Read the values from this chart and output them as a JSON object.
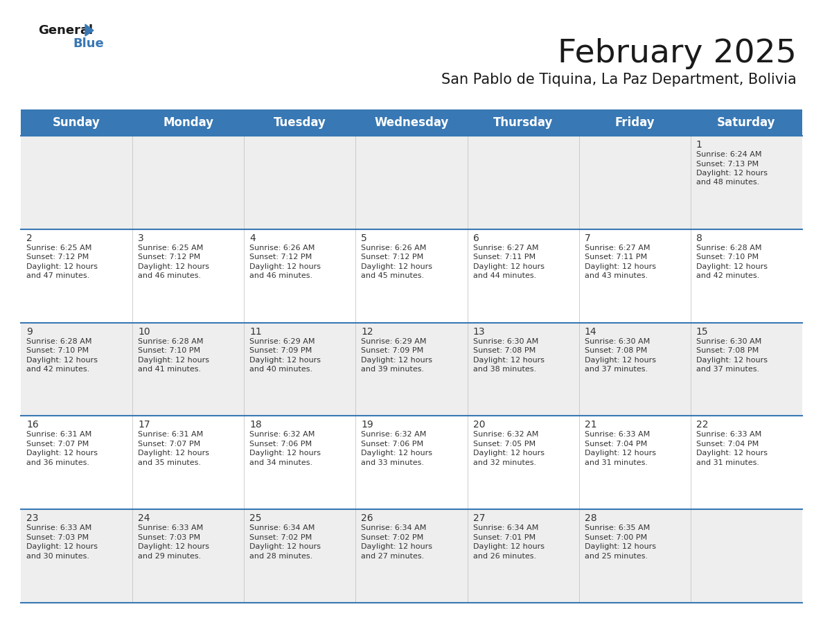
{
  "title": "February 2025",
  "subtitle": "San Pablo de Tiquina, La Paz Department, Bolivia",
  "header_color": "#3878b4",
  "header_text_color": "#ffffff",
  "day_names": [
    "Sunday",
    "Monday",
    "Tuesday",
    "Wednesday",
    "Thursday",
    "Friday",
    "Saturday"
  ],
  "bg_color": "#ffffff",
  "cell_bg_row0": "#eeeeee",
  "cell_bg_odd": "#eeeeee",
  "cell_bg_even": "#ffffff",
  "row_divider_color": "#3878b4",
  "title_fontsize": 34,
  "subtitle_fontsize": 15,
  "header_fontsize": 12,
  "day_num_fontsize": 10,
  "cell_fontsize": 8,
  "text_color": "#333333",
  "day_num_color": "#333333",
  "logo_general_color": "#1a1a1a",
  "logo_blue_color": "#3878b4",
  "logo_triangle_color": "#3878b4",
  "days": [
    {
      "date": 1,
      "col": 6,
      "row": 0,
      "sunrise": "6:24 AM",
      "sunset": "7:13 PM",
      "daylight_hours": 12,
      "daylight_minutes": 48
    },
    {
      "date": 2,
      "col": 0,
      "row": 1,
      "sunrise": "6:25 AM",
      "sunset": "7:12 PM",
      "daylight_hours": 12,
      "daylight_minutes": 47
    },
    {
      "date": 3,
      "col": 1,
      "row": 1,
      "sunrise": "6:25 AM",
      "sunset": "7:12 PM",
      "daylight_hours": 12,
      "daylight_minutes": 46
    },
    {
      "date": 4,
      "col": 2,
      "row": 1,
      "sunrise": "6:26 AM",
      "sunset": "7:12 PM",
      "daylight_hours": 12,
      "daylight_minutes": 46
    },
    {
      "date": 5,
      "col": 3,
      "row": 1,
      "sunrise": "6:26 AM",
      "sunset": "7:12 PM",
      "daylight_hours": 12,
      "daylight_minutes": 45
    },
    {
      "date": 6,
      "col": 4,
      "row": 1,
      "sunrise": "6:27 AM",
      "sunset": "7:11 PM",
      "daylight_hours": 12,
      "daylight_minutes": 44
    },
    {
      "date": 7,
      "col": 5,
      "row": 1,
      "sunrise": "6:27 AM",
      "sunset": "7:11 PM",
      "daylight_hours": 12,
      "daylight_minutes": 43
    },
    {
      "date": 8,
      "col": 6,
      "row": 1,
      "sunrise": "6:28 AM",
      "sunset": "7:10 PM",
      "daylight_hours": 12,
      "daylight_minutes": 42
    },
    {
      "date": 9,
      "col": 0,
      "row": 2,
      "sunrise": "6:28 AM",
      "sunset": "7:10 PM",
      "daylight_hours": 12,
      "daylight_minutes": 42
    },
    {
      "date": 10,
      "col": 1,
      "row": 2,
      "sunrise": "6:28 AM",
      "sunset": "7:10 PM",
      "daylight_hours": 12,
      "daylight_minutes": 41
    },
    {
      "date": 11,
      "col": 2,
      "row": 2,
      "sunrise": "6:29 AM",
      "sunset": "7:09 PM",
      "daylight_hours": 12,
      "daylight_minutes": 40
    },
    {
      "date": 12,
      "col": 3,
      "row": 2,
      "sunrise": "6:29 AM",
      "sunset": "7:09 PM",
      "daylight_hours": 12,
      "daylight_minutes": 39
    },
    {
      "date": 13,
      "col": 4,
      "row": 2,
      "sunrise": "6:30 AM",
      "sunset": "7:08 PM",
      "daylight_hours": 12,
      "daylight_minutes": 38
    },
    {
      "date": 14,
      "col": 5,
      "row": 2,
      "sunrise": "6:30 AM",
      "sunset": "7:08 PM",
      "daylight_hours": 12,
      "daylight_minutes": 37
    },
    {
      "date": 15,
      "col": 6,
      "row": 2,
      "sunrise": "6:30 AM",
      "sunset": "7:08 PM",
      "daylight_hours": 12,
      "daylight_minutes": 37
    },
    {
      "date": 16,
      "col": 0,
      "row": 3,
      "sunrise": "6:31 AM",
      "sunset": "7:07 PM",
      "daylight_hours": 12,
      "daylight_minutes": 36
    },
    {
      "date": 17,
      "col": 1,
      "row": 3,
      "sunrise": "6:31 AM",
      "sunset": "7:07 PM",
      "daylight_hours": 12,
      "daylight_minutes": 35
    },
    {
      "date": 18,
      "col": 2,
      "row": 3,
      "sunrise": "6:32 AM",
      "sunset": "7:06 PM",
      "daylight_hours": 12,
      "daylight_minutes": 34
    },
    {
      "date": 19,
      "col": 3,
      "row": 3,
      "sunrise": "6:32 AM",
      "sunset": "7:06 PM",
      "daylight_hours": 12,
      "daylight_minutes": 33
    },
    {
      "date": 20,
      "col": 4,
      "row": 3,
      "sunrise": "6:32 AM",
      "sunset": "7:05 PM",
      "daylight_hours": 12,
      "daylight_minutes": 32
    },
    {
      "date": 21,
      "col": 5,
      "row": 3,
      "sunrise": "6:33 AM",
      "sunset": "7:04 PM",
      "daylight_hours": 12,
      "daylight_minutes": 31
    },
    {
      "date": 22,
      "col": 6,
      "row": 3,
      "sunrise": "6:33 AM",
      "sunset": "7:04 PM",
      "daylight_hours": 12,
      "daylight_minutes": 31
    },
    {
      "date": 23,
      "col": 0,
      "row": 4,
      "sunrise": "6:33 AM",
      "sunset": "7:03 PM",
      "daylight_hours": 12,
      "daylight_minutes": 30
    },
    {
      "date": 24,
      "col": 1,
      "row": 4,
      "sunrise": "6:33 AM",
      "sunset": "7:03 PM",
      "daylight_hours": 12,
      "daylight_minutes": 29
    },
    {
      "date": 25,
      "col": 2,
      "row": 4,
      "sunrise": "6:34 AM",
      "sunset": "7:02 PM",
      "daylight_hours": 12,
      "daylight_minutes": 28
    },
    {
      "date": 26,
      "col": 3,
      "row": 4,
      "sunrise": "6:34 AM",
      "sunset": "7:02 PM",
      "daylight_hours": 12,
      "daylight_minutes": 27
    },
    {
      "date": 27,
      "col": 4,
      "row": 4,
      "sunrise": "6:34 AM",
      "sunset": "7:01 PM",
      "daylight_hours": 12,
      "daylight_minutes": 26
    },
    {
      "date": 28,
      "col": 5,
      "row": 4,
      "sunrise": "6:35 AM",
      "sunset": "7:00 PM",
      "daylight_hours": 12,
      "daylight_minutes": 25
    }
  ]
}
